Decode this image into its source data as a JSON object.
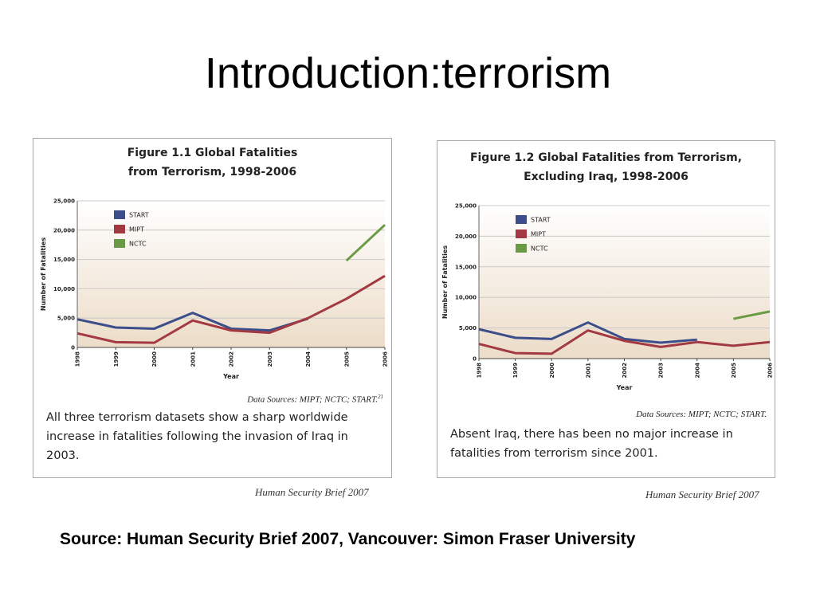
{
  "slide": {
    "title": "Introduction:terrorism",
    "source": "Source: Human Security Brief 2007, Vancouver: Simon Fraser University"
  },
  "colors": {
    "start": "#3b4e8a",
    "mipt": "#a33a42",
    "nctc": "#6b9a44"
  },
  "figures": [
    {
      "title_line1": "Figure 1.1 Global Fatalities",
      "title_line2": "from Terrorism, 1998-2006",
      "data_sources": "Data Sources: MIPT; NCTC; START.",
      "footnote": "21",
      "caption": "All three terrorism datasets show a sharp worldwide increase in fatalities following the invasion of Iraq in 2003.",
      "credit": "Human Security Brief 2007"
    },
    {
      "title_line1": "Figure 1.2 Global Fatalities from Terrorism,",
      "title_line2": "Excluding Iraq, 1998-2006",
      "data_sources": "Data Sources: MIPT; NCTC; START.",
      "caption": "Absent Iraq, there has been no major increase in fatalities from terrorism since 2001.",
      "credit": "Human Security Brief 2007"
    }
  ],
  "chart_data": [
    {
      "type": "line",
      "title": "Figure 1.1 Global Fatalities from Terrorism, 1998-2006",
      "xlabel": "Year",
      "ylabel": "Number of Fatalities",
      "x": [
        1998,
        1999,
        2000,
        2001,
        2002,
        2003,
        2004,
        2005,
        2006
      ],
      "ylim": [
        0,
        25000
      ],
      "yticks": [
        "0",
        "5,000",
        "10,000",
        "15,000",
        "20,000",
        "25,000"
      ],
      "grid": true,
      "legend_position": "top-left",
      "series": [
        {
          "name": "START",
          "color": "#3b4e8a",
          "values": [
            4800,
            3400,
            3200,
            5900,
            3200,
            2900,
            4900,
            null,
            null
          ]
        },
        {
          "name": "MIPT",
          "color": "#a33a42",
          "values": [
            2400,
            900,
            800,
            4600,
            2900,
            2500,
            5000,
            8300,
            12200
          ]
        },
        {
          "name": "NCTC",
          "color": "#6b9a44",
          "values": [
            null,
            null,
            null,
            null,
            null,
            null,
            null,
            14800,
            20900
          ]
        }
      ]
    },
    {
      "type": "line",
      "title": "Figure 1.2 Global Fatalities from Terrorism, Excluding Iraq, 1998-2006",
      "xlabel": "Year",
      "ylabel": "Number of Fatalities",
      "x": [
        1998,
        1999,
        2000,
        2001,
        2002,
        2003,
        2004,
        2005,
        2006
      ],
      "ylim": [
        0,
        25000
      ],
      "yticks": [
        "0",
        "5,000",
        "10,000",
        "15,000",
        "20,000",
        "25,000"
      ],
      "grid": true,
      "legend_position": "top-left",
      "series": [
        {
          "name": "START",
          "color": "#3b4e8a",
          "values": [
            4800,
            3400,
            3200,
            5900,
            3200,
            2600,
            3100,
            null,
            null
          ]
        },
        {
          "name": "MIPT",
          "color": "#a33a42",
          "values": [
            2400,
            900,
            800,
            4600,
            2900,
            1900,
            2700,
            2100,
            2700
          ]
        },
        {
          "name": "NCTC",
          "color": "#6b9a44",
          "values": [
            null,
            null,
            null,
            null,
            null,
            null,
            null,
            6500,
            7700
          ]
        }
      ]
    }
  ]
}
